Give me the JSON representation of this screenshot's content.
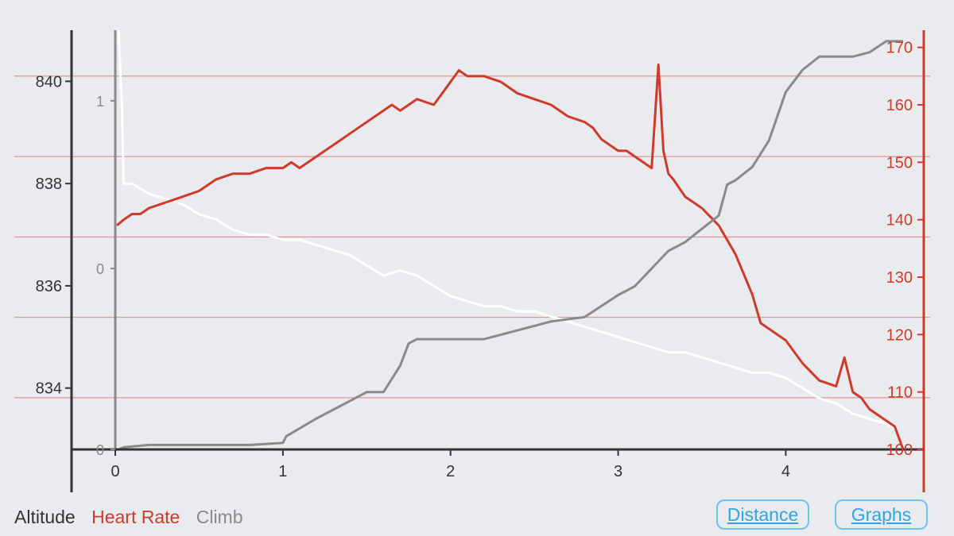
{
  "chart_data": {
    "type": "line",
    "x_ticks": [
      "0",
      "1",
      "2",
      "3",
      "4"
    ],
    "x_range": [
      0,
      4.7
    ],
    "axes": {
      "altitude": {
        "ticks": [
          "834",
          "836",
          "838",
          "840"
        ],
        "range": [
          832.8,
          841
        ],
        "color": "#333333"
      },
      "heart_rate": {
        "ticks": [
          "100",
          "110",
          "120",
          "130",
          "140",
          "150",
          "160",
          "170"
        ],
        "range": [
          100,
          173
        ],
        "color": "#cf3a2a"
      },
      "climb": {
        "ticks": [
          "0",
          "0",
          "1"
        ],
        "range": [
          0,
          1.9
        ],
        "color": "#7f7f7f"
      }
    },
    "series": [
      {
        "name": "Altitude",
        "axis": "altitude",
        "color": "#ffffff",
        "x": [
          0.02,
          0.04,
          0.05,
          0.1,
          0.2,
          0.3,
          0.4,
          0.5,
          0.6,
          0.7,
          0.8,
          0.9,
          1.0,
          1.1,
          1.2,
          1.3,
          1.4,
          1.5,
          1.6,
          1.7,
          1.8,
          1.9,
          2.0,
          2.1,
          2.2,
          2.3,
          2.4,
          2.5,
          2.6,
          2.7,
          2.8,
          2.9,
          3.0,
          3.1,
          3.2,
          3.3,
          3.4,
          3.5,
          3.6,
          3.7,
          3.8,
          3.9,
          4.0,
          4.1,
          4.2,
          4.3,
          4.4,
          4.5,
          4.6,
          4.67
        ],
        "y": [
          841.0,
          839.5,
          838.0,
          838.0,
          837.8,
          837.7,
          837.6,
          837.4,
          837.3,
          837.1,
          837.0,
          837.0,
          836.9,
          836.9,
          836.8,
          836.7,
          836.6,
          836.4,
          836.2,
          836.3,
          836.2,
          836.0,
          835.8,
          835.7,
          835.6,
          835.6,
          835.5,
          835.5,
          835.4,
          835.3,
          835.2,
          835.1,
          835.0,
          834.9,
          834.8,
          834.7,
          834.7,
          834.6,
          834.5,
          834.4,
          834.3,
          834.3,
          834.2,
          834.0,
          833.8,
          833.7,
          833.5,
          833.4,
          833.3,
          833.2
        ]
      },
      {
        "name": "Heart Rate",
        "axis": "heart_rate",
        "color": "#cf3a2a",
        "x": [
          0.01,
          0.05,
          0.1,
          0.15,
          0.2,
          0.3,
          0.4,
          0.5,
          0.6,
          0.7,
          0.8,
          0.9,
          1.0,
          1.05,
          1.1,
          1.2,
          1.3,
          1.4,
          1.5,
          1.6,
          1.65,
          1.7,
          1.8,
          1.9,
          1.95,
          2.0,
          2.05,
          2.1,
          2.2,
          2.3,
          2.4,
          2.5,
          2.6,
          2.7,
          2.8,
          2.85,
          2.9,
          3.0,
          3.05,
          3.1,
          3.15,
          3.2,
          3.24,
          3.27,
          3.3,
          3.33,
          3.4,
          3.5,
          3.6,
          3.7,
          3.8,
          3.85,
          3.9,
          4.0,
          4.1,
          4.2,
          4.3,
          4.35,
          4.4,
          4.45,
          4.5,
          4.55,
          4.6,
          4.65,
          4.7
        ],
        "y": [
          139,
          140,
          141,
          141,
          142,
          143,
          144,
          145,
          147,
          148,
          148,
          149,
          149,
          150,
          149,
          151,
          153,
          155,
          157,
          159,
          160,
          159,
          161,
          160,
          162,
          164,
          166,
          165,
          165,
          164,
          162,
          161,
          160,
          158,
          157,
          156,
          154,
          152,
          152,
          151,
          150,
          149,
          167,
          152,
          148,
          147,
          144,
          142,
          139,
          134,
          127,
          122,
          121,
          119,
          115,
          112,
          111,
          116,
          110,
          109,
          107,
          106,
          105,
          104,
          100
        ]
      },
      {
        "name": "Climb",
        "axis": "climb",
        "color": "#8a8a8a",
        "x": [
          0.01,
          0.02,
          0.05,
          0.2,
          0.4,
          0.6,
          0.8,
          1.0,
          1.02,
          1.2,
          1.3,
          1.4,
          1.5,
          1.6,
          1.7,
          1.75,
          1.8,
          2.0,
          2.2,
          2.4,
          2.5,
          2.6,
          2.8,
          3.0,
          3.1,
          3.2,
          3.3,
          3.4,
          3.5,
          3.6,
          3.65,
          3.7,
          3.8,
          3.9,
          4.0,
          4.1,
          4.2,
          4.4,
          4.5,
          4.6,
          4.7
        ],
        "y": [
          0.0,
          0.0,
          0.01,
          0.02,
          0.02,
          0.02,
          0.02,
          0.03,
          0.06,
          0.14,
          0.18,
          0.22,
          0.26,
          0.26,
          0.38,
          0.48,
          0.5,
          0.5,
          0.5,
          0.54,
          0.56,
          0.58,
          0.6,
          0.7,
          0.74,
          0.82,
          0.9,
          0.94,
          1.0,
          1.06,
          1.2,
          1.22,
          1.28,
          1.4,
          1.62,
          1.72,
          1.78,
          1.78,
          1.8,
          1.85,
          1.85
        ]
      }
    ],
    "grid": true
  },
  "legend": {
    "altitude": "Altitude",
    "heart_rate": "Heart Rate",
    "climb": "Climb"
  },
  "buttons": {
    "distance": "Distance",
    "graphs": "Graphs"
  },
  "colors": {
    "background": "#e9ebee",
    "axis": "#333333",
    "hr": "#cf3a2a",
    "climb": "#8a8a8a",
    "altitude_line": "#ffffff",
    "button": "#2fa6e0"
  }
}
